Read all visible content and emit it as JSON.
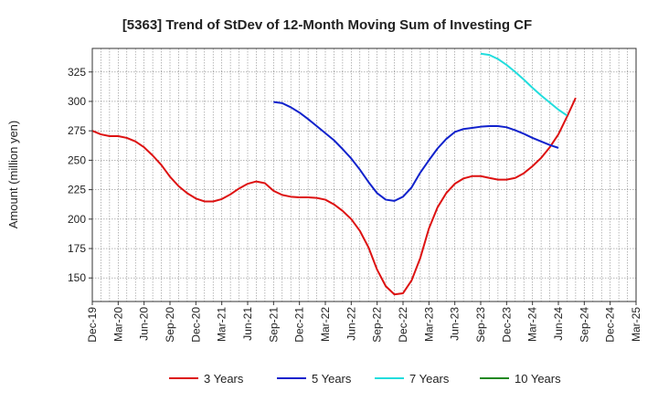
{
  "chart_data": {
    "type": "line",
    "title": "[5363]  Trend of StDev of 12-Month Moving Sum of Investing CF",
    "ylabel": "Amount (million yen)",
    "xlabel": "",
    "ylim": [
      130,
      345
    ],
    "y_ticks": [
      150,
      175,
      200,
      225,
      250,
      275,
      300,
      325
    ],
    "x_ticks": [
      "Dec-19",
      "Mar-20",
      "Jun-20",
      "Sep-20",
      "Dec-20",
      "Mar-21",
      "Jun-21",
      "Sep-21",
      "Dec-21",
      "Mar-22",
      "Jun-22",
      "Sep-22",
      "Dec-22",
      "Mar-23",
      "Jun-23",
      "Sep-23",
      "Dec-23",
      "Mar-24",
      "Jun-24",
      "Sep-24",
      "Dec-24",
      "Mar-25"
    ],
    "grid": true,
    "legend_position": "bottom",
    "series": [
      {
        "name": "3 Years",
        "color": "#dd1111",
        "start_index": 0,
        "values": [
          275,
          272,
          270.5,
          270.5,
          269,
          266,
          261,
          254,
          246,
          236,
          228,
          222,
          217.5,
          215,
          215,
          217,
          221,
          226,
          230,
          232,
          230.5,
          224,
          220.5,
          219,
          218.5,
          218.5,
          218,
          216.5,
          212.5,
          207,
          200,
          190,
          176,
          157,
          143,
          136,
          137,
          148,
          167,
          192,
          210,
          222,
          230,
          234.5,
          236.5,
          236.5,
          235,
          233.5,
          233.5,
          235,
          239,
          245,
          252,
          261,
          272,
          287,
          303
        ]
      },
      {
        "name": "5 Years",
        "color": "#1122cc",
        "start_index": 21,
        "values": [
          299.5,
          298.5,
          295,
          290.5,
          285,
          279,
          273,
          267,
          259.5,
          251.5,
          242,
          231.5,
          222,
          216.5,
          215.5,
          219,
          227,
          239.5,
          250,
          260,
          268,
          274,
          276.5,
          277.5,
          278.5,
          279,
          279,
          278,
          275.5,
          272.5,
          269,
          266,
          263,
          260.5
        ]
      },
      {
        "name": "7 Years",
        "color": "#22dddd",
        "start_index": 45,
        "values": [
          340.5,
          339.5,
          336,
          331,
          325,
          318.5,
          311.5,
          305,
          299,
          293,
          288
        ]
      },
      {
        "name": "10 Years",
        "color": "#228822",
        "start_index": 0,
        "values": []
      }
    ]
  }
}
